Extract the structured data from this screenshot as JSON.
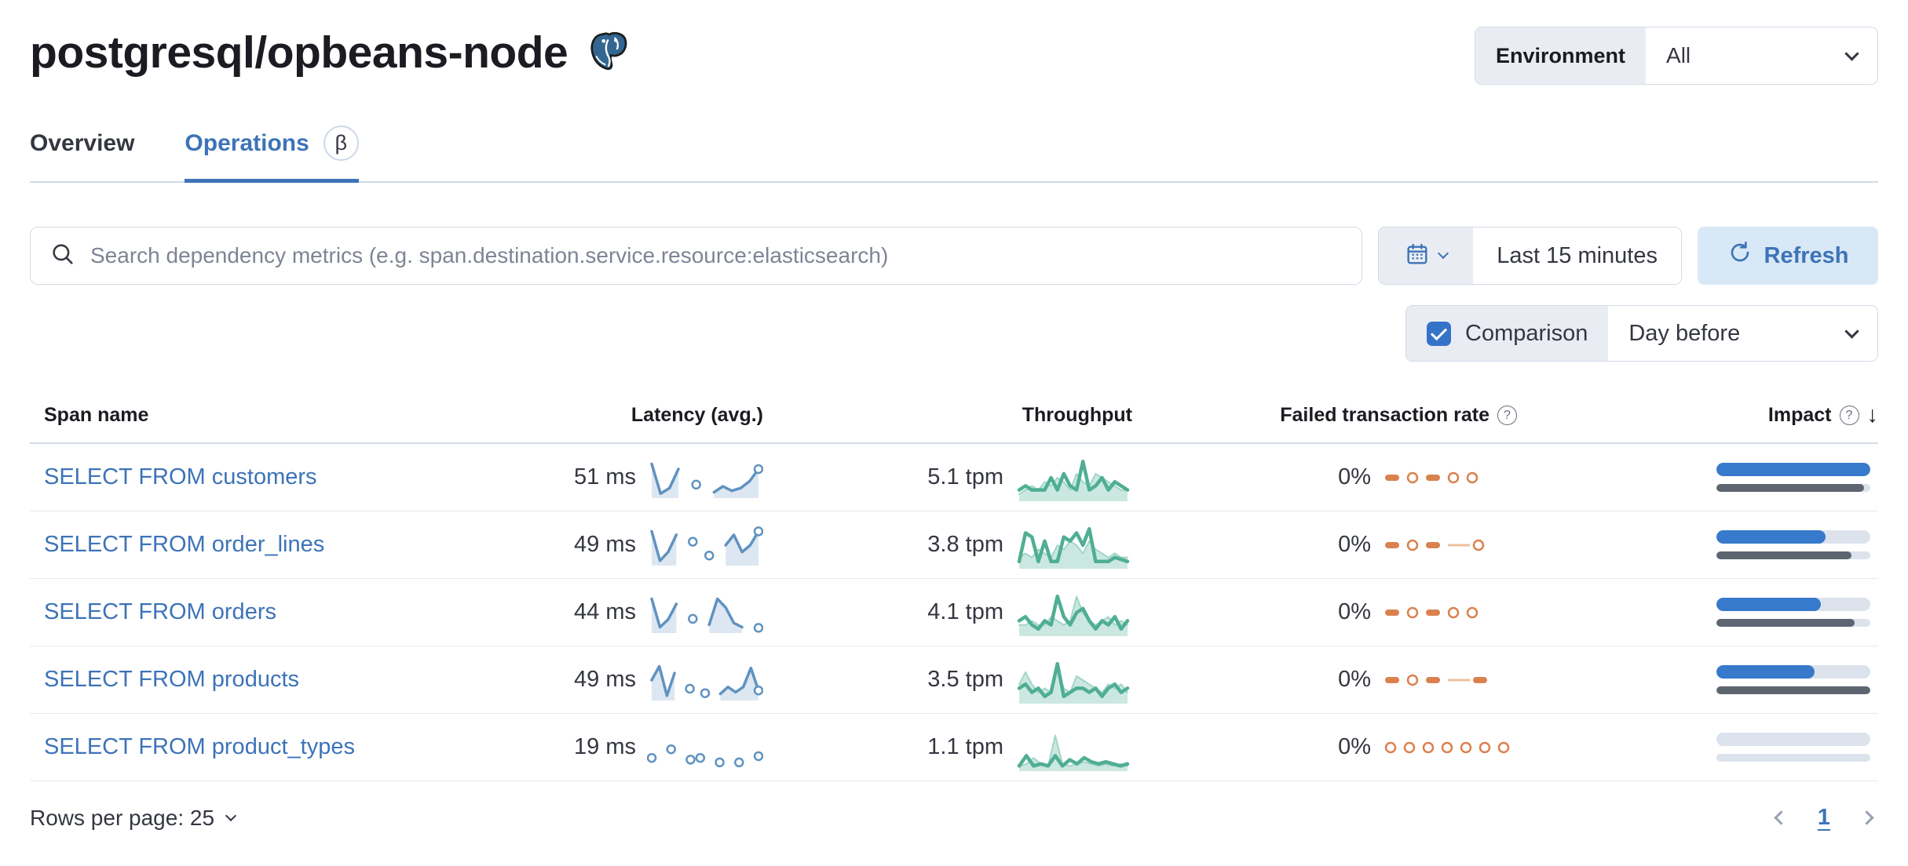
{
  "page": {
    "title": "postgresql/opbeans-node"
  },
  "environment": {
    "label": "Environment",
    "value": "All"
  },
  "tabs": [
    {
      "label": "Overview",
      "active": false
    },
    {
      "label": "Operations",
      "active": true,
      "beta": "β"
    }
  ],
  "search": {
    "placeholder": "Search dependency metrics (e.g. span.destination.service.resource:elasticsearch)"
  },
  "time_picker": {
    "value": "Last 15 minutes"
  },
  "refresh": {
    "label": "Refresh"
  },
  "comparison": {
    "label": "Comparison",
    "value": "Day before",
    "checked": true
  },
  "table": {
    "columns": {
      "span_name": "Span name",
      "latency": "Latency (avg.)",
      "throughput": "Throughput",
      "failed_rate": "Failed transaction rate",
      "impact": "Impact"
    },
    "rows": [
      {
        "span_name": "SELECT FROM customers",
        "latency": "51 ms",
        "latency_spark": [
          9,
          0.4,
          2,
          7.5,
          null,
          3,
          null,
          0.8,
          2.5,
          1.2,
          2,
          4,
          7.5
        ],
        "latency_dots_only": false,
        "throughput": "5.1 tpm",
        "throughput_spark": [
          2,
          3,
          2,
          2,
          2,
          5,
          2,
          6,
          3,
          2,
          9,
          2,
          3,
          5,
          2,
          4,
          3,
          2
        ],
        "throughput_prev": [
          1,
          2,
          3,
          2,
          4,
          3,
          5,
          4,
          2,
          6,
          4,
          3,
          6,
          5,
          4,
          3,
          2,
          2
        ],
        "failed_rate": "0%",
        "failed_pattern": [
          "dash",
          "ring",
          "dash",
          "ring",
          "ring"
        ],
        "impact_current": 100,
        "impact_previous": 96
      },
      {
        "span_name": "SELECT FROM order_lines",
        "latency": "49 ms",
        "latency_spark": [
          9,
          0.5,
          3,
          8,
          null,
          6,
          null,
          2,
          null,
          5,
          8,
          3,
          5,
          9
        ],
        "latency_dots_only": false,
        "throughput": "3.8 tpm",
        "throughput_spark": [
          1,
          8,
          7,
          1,
          6,
          1,
          1,
          7,
          6,
          8,
          5,
          9,
          1,
          1,
          1,
          2,
          1.5,
          1
        ],
        "throughput_prev": [
          2,
          3,
          2,
          4,
          3,
          2,
          5,
          4,
          6,
          5,
          3,
          6,
          4,
          3,
          2,
          3,
          2,
          2
        ],
        "failed_rate": "0%",
        "failed_pattern": [
          "dash",
          "ring",
          "dash",
          "line",
          "ring"
        ],
        "impact_current": 71,
        "impact_previous": 88
      },
      {
        "span_name": "SELECT FROM orders",
        "latency": "44 ms",
        "latency_spark": [
          9,
          0.8,
          3,
          7.5,
          null,
          3.2,
          null,
          1.5,
          9,
          6.5,
          2,
          0.8,
          null,
          0.6
        ],
        "latency_dots_only": false,
        "throughput": "4.1 tpm",
        "throughput_spark": [
          3,
          4,
          2,
          1,
          3,
          2,
          9,
          4,
          2,
          5,
          6,
          3,
          1,
          3,
          2,
          4,
          1,
          3
        ],
        "throughput_prev": [
          2,
          2,
          3,
          2,
          2,
          4,
          3,
          2,
          3,
          9,
          5,
          3,
          2,
          3,
          4,
          2,
          3,
          2
        ],
        "failed_rate": "0%",
        "failed_pattern": [
          "dash",
          "ring",
          "dash",
          "ring",
          "ring"
        ],
        "impact_current": 68,
        "impact_previous": 90
      },
      {
        "span_name": "SELECT FROM products",
        "latency": "49 ms",
        "latency_spark": [
          5,
          9,
          0.5,
          7,
          null,
          2.5,
          null,
          1.2,
          null,
          1,
          3,
          1.5,
          3,
          8.5,
          2
        ],
        "latency_dots_only": false,
        "throughput": "3.5 tpm",
        "throughput_spark": [
          3,
          4,
          2,
          3,
          1,
          2,
          9,
          1,
          2,
          3,
          3,
          2,
          3,
          1,
          3,
          4,
          2,
          3
        ],
        "throughput_prev": [
          4,
          7,
          4,
          2,
          3,
          2,
          8,
          3,
          2,
          6,
          5,
          4,
          3,
          2,
          4,
          3,
          4,
          2
        ],
        "failed_rate": "0%",
        "failed_pattern": [
          "dash",
          "ring",
          "dash",
          "line",
          "dash"
        ],
        "impact_current": 64,
        "impact_previous": 100
      },
      {
        "span_name": "SELECT FROM product_types",
        "latency": "19 ms",
        "latency_spark": [
          2,
          null,
          4.5,
          null,
          1.5,
          2,
          null,
          0.7,
          null,
          0.7,
          null,
          2.5
        ],
        "latency_dots_only": true,
        "throughput": "1.1 tpm",
        "throughput_spark": [
          0.5,
          3,
          0.5,
          1,
          0.5,
          3,
          0.5,
          2,
          1,
          2.5,
          1.5,
          1,
          1.5,
          1,
          0.5,
          1
        ],
        "throughput_prev": [
          0.5,
          1,
          2.5,
          1,
          0.5,
          8,
          1,
          0.5,
          1,
          1.5,
          1,
          0.5,
          1,
          0.5,
          1,
          0.5
        ],
        "failed_rate": "0%",
        "failed_pattern": [
          "ring",
          "ring",
          "ring",
          "ring",
          "ring",
          "ring",
          "ring"
        ],
        "impact_current": 0,
        "impact_previous": 0
      }
    ]
  },
  "footer": {
    "rows_per_page": "Rows per page: 25",
    "page": "1"
  },
  "colors": {
    "link_blue": "#3d73b8",
    "latency_blue": "#6092C0",
    "latency_fill": "rgba(96,146,192,0.22)",
    "green": "#4fae94",
    "green_fill": "rgba(84,179,153,0.30)",
    "green_prev_stroke": "rgba(84,179,153,0.45)",
    "orange": "#d9824f",
    "orange_light": "#ecc09f",
    "impact_blue": "#3779cb",
    "impact_gray": "#5d6571"
  }
}
